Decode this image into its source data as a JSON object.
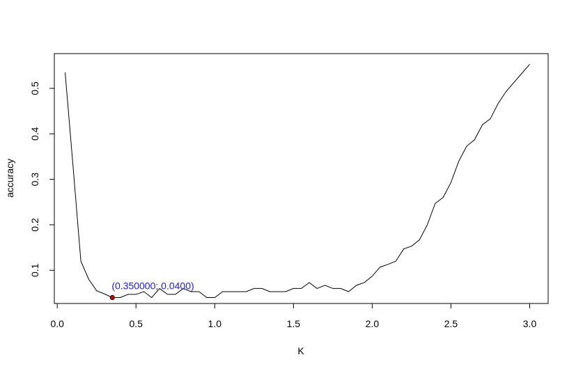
{
  "chart_data": {
    "type": "line",
    "xlabel": "K",
    "ylabel": "accuracy",
    "xlim": [
      0.05,
      3.0
    ],
    "ylim": [
      0.04,
      0.555
    ],
    "x_ticks": [
      0.0,
      0.5,
      1.0,
      1.5,
      2.0,
      2.5,
      3.0
    ],
    "x_tick_labels": [
      "0.0",
      "0.5",
      "1.0",
      "1.5",
      "2.0",
      "2.5",
      "3.0"
    ],
    "y_ticks": [
      0.1,
      0.2,
      0.3,
      0.4,
      0.5
    ],
    "y_tick_labels": [
      "0.1",
      "0.2",
      "0.3",
      "0.4",
      "0.5"
    ],
    "grid": false,
    "line_color": "#000000",
    "x": [
      0.05,
      0.1,
      0.15,
      0.2,
      0.25,
      0.3,
      0.35,
      0.4,
      0.45,
      0.5,
      0.55,
      0.6,
      0.65,
      0.7,
      0.75,
      0.8,
      0.85,
      0.9,
      0.95,
      1.0,
      1.05,
      1.1,
      1.15,
      1.2,
      1.25,
      1.3,
      1.35,
      1.4,
      1.45,
      1.5,
      1.55,
      1.6,
      1.65,
      1.7,
      1.75,
      1.8,
      1.85,
      1.9,
      1.95,
      2.0,
      2.05,
      2.1,
      2.15,
      2.2,
      2.25,
      2.3,
      2.35,
      2.4,
      2.45,
      2.5,
      2.55,
      2.6,
      2.65,
      2.7,
      2.75,
      2.8,
      2.85,
      2.9,
      2.95,
      3.0
    ],
    "y": [
      0.535,
      0.33,
      0.12,
      0.08,
      0.055,
      0.048,
      0.04,
      0.04,
      0.047,
      0.047,
      0.053,
      0.04,
      0.06,
      0.047,
      0.047,
      0.06,
      0.053,
      0.053,
      0.04,
      0.04,
      0.053,
      0.053,
      0.053,
      0.053,
      0.06,
      0.06,
      0.053,
      0.053,
      0.053,
      0.06,
      0.06,
      0.073,
      0.06,
      0.067,
      0.06,
      0.06,
      0.053,
      0.067,
      0.073,
      0.087,
      0.107,
      0.113,
      0.12,
      0.147,
      0.153,
      0.167,
      0.2,
      0.247,
      0.26,
      0.293,
      0.34,
      0.373,
      0.387,
      0.42,
      0.433,
      0.467,
      0.493,
      0.513,
      0.533,
      0.553
    ],
    "highlight": {
      "x": 0.35,
      "y": 0.04,
      "color": "#cc0000",
      "label": "(0.350000; 0.0400)",
      "label_color": "#1a1aff"
    }
  }
}
